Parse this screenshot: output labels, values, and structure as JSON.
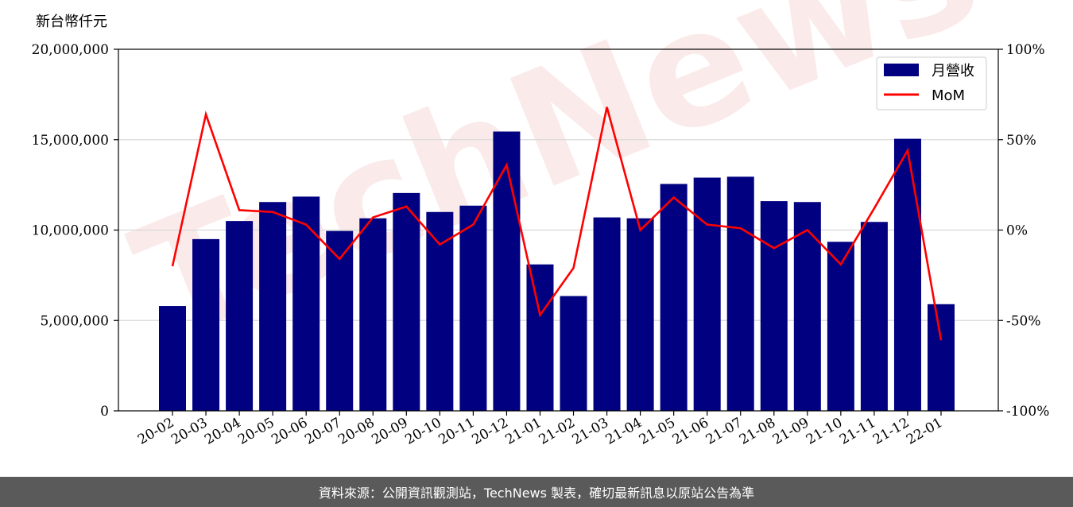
{
  "unit_label": "新台幣仟元",
  "footer_text": "資料來源：公開資訊觀測站，TechNews 製表，確切最新訊息以原站公告為準",
  "watermark_text": "TechNews",
  "colors": {
    "bar": "#000080",
    "line": "#ff0000",
    "grid": "#d9d9d9",
    "footer_bg": "#5a5a5a",
    "watermark": "#f7d9d9"
  },
  "chart_data": {
    "type": "bar",
    "categories": [
      "20-02",
      "20-03",
      "20-04",
      "20-05",
      "20-06",
      "20-07",
      "20-08",
      "20-09",
      "20-10",
      "20-11",
      "20-12",
      "21-01",
      "21-02",
      "21-03",
      "21-04",
      "21-05",
      "21-06",
      "21-07",
      "21-08",
      "21-09",
      "21-10",
      "21-11",
      "21-12",
      "22-01"
    ],
    "series": [
      {
        "name": "月營收",
        "type": "bar",
        "axis": "left",
        "values": [
          5800000,
          9500000,
          10500000,
          11550000,
          11850000,
          9950000,
          10650000,
          12050000,
          11000000,
          11350000,
          15450000,
          8100000,
          6350000,
          10700000,
          10650000,
          12550000,
          12900000,
          12950000,
          11600000,
          11550000,
          9350000,
          10450000,
          15050000,
          5900000
        ]
      },
      {
        "name": "MoM",
        "type": "line",
        "axis": "right",
        "values": [
          -20,
          64,
          11,
          10,
          3,
          -16,
          7,
          13,
          -8,
          3,
          36,
          -47,
          -21,
          68,
          0,
          18,
          3,
          1,
          -10,
          0,
          -19,
          12,
          44,
          -61
        ]
      }
    ],
    "y_left": {
      "ylim": [
        0,
        20000000
      ],
      "ticks": [
        0,
        5000000,
        10000000,
        15000000,
        20000000
      ],
      "tick_labels": [
        "0",
        "5,000,000",
        "10,000,000",
        "15,000,000",
        "20,000,000"
      ]
    },
    "y_right": {
      "ylim": [
        -100,
        100
      ],
      "ticks": [
        -100,
        -50,
        0,
        50,
        100
      ],
      "tick_labels": [
        "-100%",
        "-50%",
        "0%",
        "50%",
        "100%"
      ]
    },
    "grid": true,
    "legend_position": "top-right"
  }
}
